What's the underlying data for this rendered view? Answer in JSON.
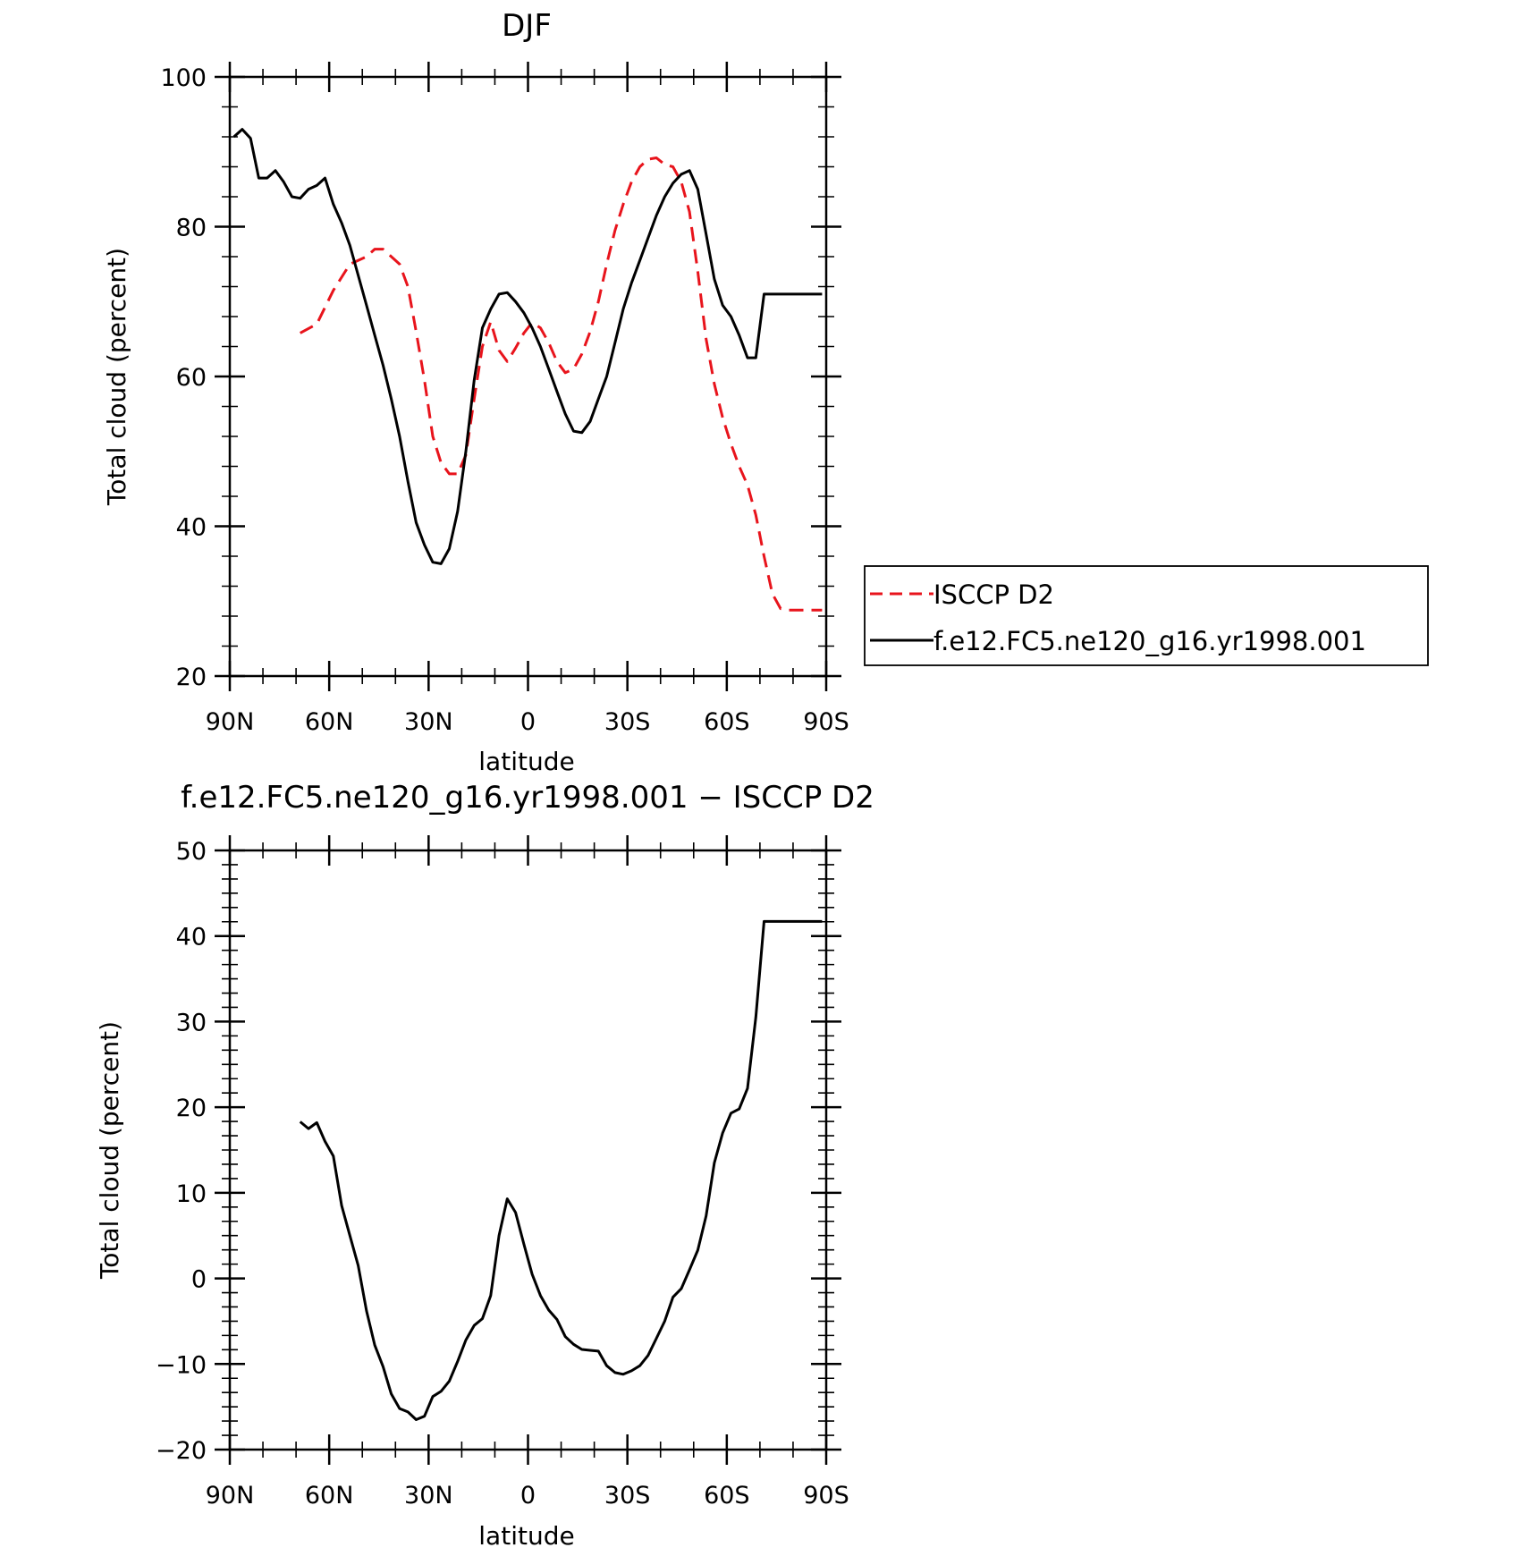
{
  "chart_data": [
    {
      "type": "line",
      "title": "DJF",
      "xlabel": "latitude",
      "ylabel": "Total cloud (percent)",
      "xlim": [
        90,
        -90
      ],
      "ylim": [
        20,
        100
      ],
      "x_tick_values": [
        90,
        60,
        30,
        0,
        -30,
        -60,
        -90
      ],
      "x_tick_labels": [
        "90N",
        "60N",
        "30N",
        "0",
        "30S",
        "60S",
        "90S"
      ],
      "y_ticks": [
        20,
        40,
        60,
        80,
        100
      ],
      "legend_position": "right",
      "series": [
        {
          "name": "ISCCP D2",
          "color": "#e8141c",
          "style": "dashed",
          "x": [
            68.75,
            63.75,
            58.75,
            53.75,
            48.75,
            46.25,
            43.75,
            38.75,
            36.25,
            33.75,
            31.25,
            28.75,
            26.25,
            23.75,
            21.25,
            18.75,
            16.25,
            13.75,
            11.25,
            8.75,
            6.25,
            3.75,
            1.25,
            -1.25,
            -3.75,
            -6.25,
            -8.75,
            -11.25,
            -13.75,
            -16.25,
            -18.75,
            -21.25,
            -23.75,
            -26.25,
            -28.75,
            -31.25,
            -33.75,
            -36.25,
            -38.75,
            -41.25,
            -43.75,
            -46.25,
            -48.75,
            -51.25,
            -53.75,
            -56.25,
            -58.75,
            -61.25,
            -63.75,
            -66.25,
            -68.75,
            -71.25,
            -73.75,
            -76.25,
            -78.75,
            -81.25,
            -83.75,
            -86.25,
            -88.75
          ],
          "y": [
            65.8,
            67.0,
            71.5,
            75.0,
            76.0,
            77.0,
            77.0,
            75.0,
            72.0,
            66.0,
            59.5,
            52.0,
            48.5,
            47.0,
            47.0,
            49.5,
            57.0,
            64.0,
            67.3,
            63.5,
            62.0,
            63.8,
            65.8,
            67.2,
            66.5,
            64.5,
            62.0,
            60.5,
            61.0,
            63.0,
            66.0,
            70.0,
            75.0,
            79.5,
            83.0,
            86.0,
            88.0,
            89.0,
            89.2,
            88.3,
            88.0,
            86.0,
            82.0,
            74.0,
            65.0,
            59.0,
            54.5,
            51.0,
            48.0,
            45.5,
            41.5,
            36.0,
            31.0,
            29.0,
            28.8,
            28.8,
            28.8,
            28.8,
            28.8
          ]
        },
        {
          "name": "f.e12.FC5.ne120_g16.yr1998.001",
          "color": "#000000",
          "style": "solid",
          "x": [
            88.75,
            86.25,
            83.75,
            81.25,
            78.75,
            76.25,
            73.75,
            71.25,
            68.75,
            66.25,
            63.75,
            61.25,
            58.75,
            56.25,
            53.75,
            51.25,
            48.75,
            46.25,
            43.75,
            41.25,
            38.75,
            36.25,
            33.75,
            31.25,
            28.75,
            26.25,
            23.75,
            21.25,
            18.75,
            16.25,
            13.75,
            11.25,
            8.75,
            6.25,
            3.75,
            1.25,
            -1.25,
            -3.75,
            -6.25,
            -8.75,
            -11.25,
            -13.75,
            -16.25,
            -18.75,
            -21.25,
            -23.75,
            -26.25,
            -28.75,
            -31.25,
            -33.75,
            -36.25,
            -38.75,
            -41.25,
            -43.75,
            -46.25,
            -48.75,
            -51.25,
            -53.75,
            -56.25,
            -58.75,
            -61.25,
            -63.75,
            -66.25,
            -68.75,
            -71.25,
            -73.75,
            -76.25,
            -78.75,
            -81.25,
            -83.75,
            -86.25,
            -88.75
          ],
          "y": [
            92.0,
            93.0,
            91.8,
            86.5,
            86.5,
            87.5,
            86.0,
            84.0,
            83.8,
            85.0,
            85.5,
            86.5,
            83.0,
            80.5,
            77.5,
            73.5,
            69.5,
            65.5,
            61.5,
            57.0,
            52.0,
            46.0,
            40.5,
            37.5,
            35.2,
            35.0,
            37.0,
            42.0,
            50.0,
            59.5,
            66.5,
            69.0,
            71.0,
            71.2,
            70.0,
            68.5,
            66.5,
            64.0,
            61.0,
            58.0,
            55.0,
            52.7,
            52.5,
            54.0,
            57.0,
            60.0,
            64.5,
            69.0,
            72.5,
            75.5,
            78.5,
            81.5,
            84.0,
            85.8,
            87.0,
            87.5,
            85.0,
            79.0,
            73.0,
            69.5,
            68.0,
            65.5,
            62.5,
            62.5,
            71.0,
            71.0,
            71.0,
            71.0,
            71.0,
            71.0,
            71.0,
            71.0
          ]
        }
      ]
    },
    {
      "type": "line",
      "title": "f.e12.FC5.ne120_g16.yr1998.001 − ISCCP D2",
      "xlabel": "latitude",
      "ylabel": "Total cloud (percent)",
      "xlim": [
        90,
        -90
      ],
      "ylim": [
        -20,
        50
      ],
      "x_tick_values": [
        90,
        60,
        30,
        0,
        -30,
        -60,
        -90
      ],
      "x_tick_labels": [
        "90N",
        "60N",
        "30N",
        "0",
        "30S",
        "60S",
        "90S"
      ],
      "y_ticks": [
        -20,
        -10,
        0,
        10,
        20,
        30,
        40,
        50
      ],
      "y_tick_labels": [
        "−20",
        "−10",
        "0",
        "10",
        "20",
        "30",
        "40",
        "50"
      ],
      "series": [
        {
          "color": "#000000",
          "style": "solid",
          "x": [
            68.75,
            66.25,
            63.75,
            61.25,
            58.75,
            56.25,
            53.75,
            51.25,
            48.75,
            46.25,
            43.75,
            41.25,
            38.75,
            36.25,
            33.75,
            31.25,
            28.75,
            26.25,
            23.75,
            21.25,
            18.75,
            16.25,
            13.75,
            11.25,
            8.75,
            6.25,
            3.75,
            1.25,
            -1.25,
            -3.75,
            -6.25,
            -8.75,
            -11.25,
            -13.75,
            -16.25,
            -18.75,
            -21.25,
            -23.75,
            -26.25,
            -28.75,
            -31.25,
            -33.75,
            -36.25,
            -38.75,
            -41.25,
            -43.75,
            -46.25,
            -48.75,
            -51.25,
            -53.75,
            -56.25,
            -58.75,
            -61.25,
            -63.75,
            -66.25,
            -68.75,
            -71.25,
            -73.75,
            -76.25,
            -78.75,
            -81.25,
            -83.75,
            -86.25,
            -88.75
          ],
          "y": [
            18.3,
            17.5,
            18.2,
            16.0,
            14.3,
            8.5,
            5.0,
            1.5,
            -3.8,
            -7.8,
            -10.3,
            -13.5,
            -15.2,
            -15.6,
            -16.5,
            -16.1,
            -13.8,
            -13.2,
            -12.0,
            -9.7,
            -7.2,
            -5.5,
            -4.7,
            -2.0,
            5.0,
            9.3,
            7.7,
            4.0,
            0.5,
            -2.0,
            -3.7,
            -4.8,
            -6.8,
            -7.7,
            -8.3,
            -8.4,
            -8.5,
            -10.2,
            -11.0,
            -11.2,
            -10.8,
            -10.2,
            -9.0,
            -7.0,
            -5.0,
            -2.2,
            -1.2,
            1.0,
            3.3,
            7.3,
            13.5,
            17.0,
            19.3,
            19.8,
            22.2,
            30.5,
            41.7,
            41.7,
            41.7,
            41.7,
            41.7,
            41.7,
            41.7,
            41.7
          ]
        }
      ]
    }
  ]
}
